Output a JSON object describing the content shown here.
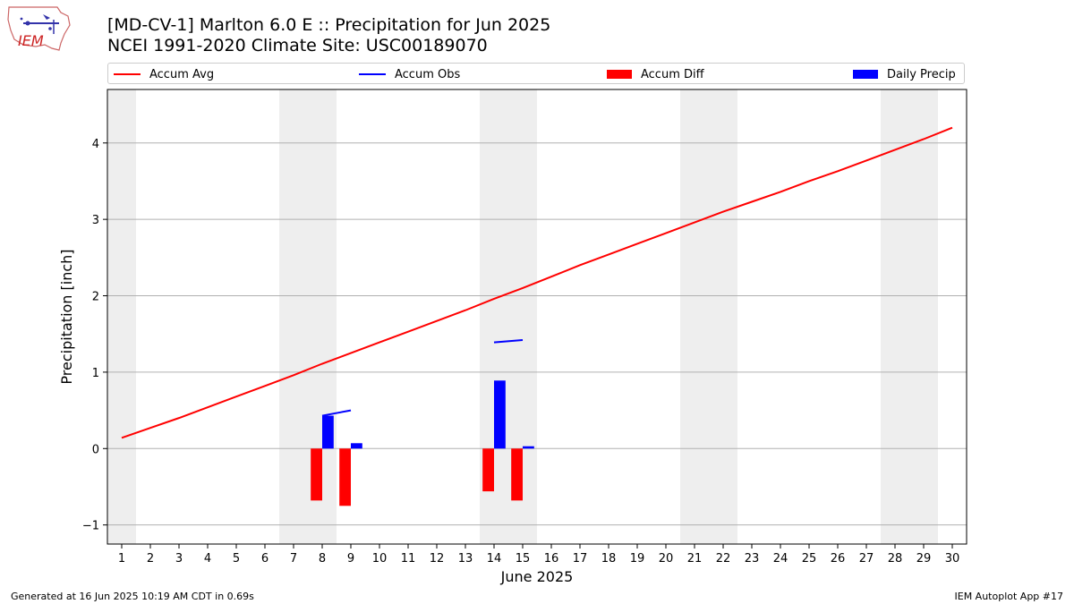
{
  "header": {
    "logo_text": "IEM",
    "title_line1": "[MD-CV-1] Marlton 6.0 E :: Precipitation for Jun 2025",
    "title_line2": "NCEI 1991-2020 Climate Site: USC00189070"
  },
  "legend": {
    "items": [
      {
        "label": "Accum Avg",
        "kind": "line",
        "color": "#ff0000"
      },
      {
        "label": "Accum Obs",
        "kind": "line",
        "color": "#0000ff"
      },
      {
        "label": "Accum Diff",
        "kind": "box",
        "color": "#ff0000"
      },
      {
        "label": "Daily Precip",
        "kind": "box",
        "color": "#0000ff"
      }
    ]
  },
  "footer": {
    "left": "Generated at 16 Jun 2025 10:19 AM CDT in 0.69s",
    "right": "IEM Autoplot App #17"
  },
  "chart_data": {
    "type": "bar",
    "xlabel": "June 2025",
    "ylabel": "Precipitation [inch]",
    "xlim": [
      0.5,
      30.5
    ],
    "ylim": [
      -1.25,
      4.7
    ],
    "x_ticks": [
      1,
      2,
      3,
      4,
      5,
      6,
      7,
      8,
      9,
      10,
      11,
      12,
      13,
      14,
      15,
      16,
      17,
      18,
      19,
      20,
      21,
      22,
      23,
      24,
      25,
      26,
      27,
      28,
      29,
      30
    ],
    "y_ticks": [
      -1,
      0,
      1,
      2,
      3,
      4
    ],
    "grid": "horizontal",
    "legend_placement": "top",
    "weekend_shading": [
      [
        0.5,
        1.5
      ],
      [
        6.5,
        8.5
      ],
      [
        13.5,
        15.5
      ],
      [
        20.5,
        22.5
      ],
      [
        27.5,
        29.5
      ]
    ],
    "series": [
      {
        "name": "Accum Avg",
        "kind": "line",
        "color": "#ff0000",
        "x": [
          1,
          2,
          3,
          4,
          5,
          6,
          7,
          8,
          9,
          10,
          11,
          12,
          13,
          14,
          15,
          16,
          17,
          18,
          19,
          20,
          21,
          22,
          23,
          24,
          25,
          26,
          27,
          28,
          29,
          30
        ],
        "y": [
          0.14,
          0.27,
          0.4,
          0.54,
          0.68,
          0.82,
          0.96,
          1.11,
          1.25,
          1.39,
          1.53,
          1.67,
          1.81,
          1.96,
          2.1,
          2.25,
          2.4,
          2.54,
          2.68,
          2.82,
          2.96,
          3.1,
          3.23,
          3.36,
          3.5,
          3.63,
          3.77,
          3.91,
          4.05,
          4.2
        ]
      },
      {
        "name": "Accum Obs",
        "kind": "line",
        "color": "#0000ff",
        "segments": [
          {
            "x": [
              8,
              9
            ],
            "y": [
              0.43,
              0.5
            ]
          },
          {
            "x": [
              14,
              15
            ],
            "y": [
              1.39,
              1.42
            ]
          }
        ]
      },
      {
        "name": "Accum Diff",
        "kind": "bar",
        "color": "#ff0000",
        "x": [
          8,
          9,
          14,
          15
        ],
        "values": [
          -0.68,
          -0.75,
          -0.56,
          -0.68
        ]
      },
      {
        "name": "Daily Precip",
        "kind": "bar",
        "color": "#0000ff",
        "x": [
          8,
          9,
          14,
          15
        ],
        "values": [
          0.43,
          0.07,
          0.89,
          0.03
        ]
      }
    ]
  }
}
